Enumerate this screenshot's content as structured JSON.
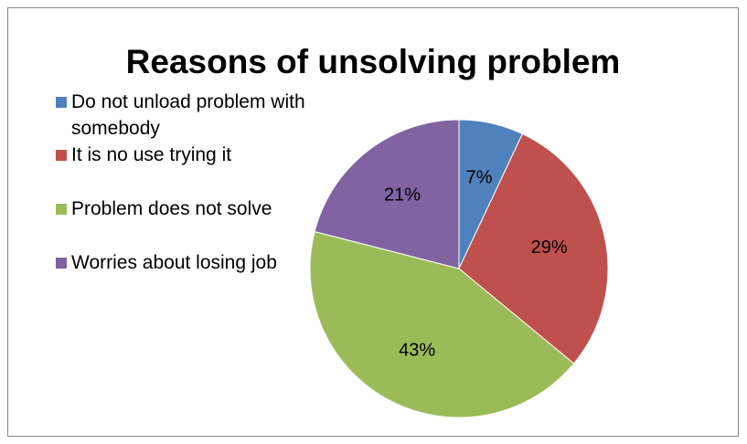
{
  "chart_data": {
    "type": "pie",
    "title": "Reasons of unsolving problem",
    "categories": [
      "Do not unload problem with somebody",
      "It is no use trying it",
      "Problem does not solve",
      "Worries about losing job"
    ],
    "values": [
      7,
      29,
      43,
      21
    ],
    "labels": [
      "7%",
      "29%",
      "43%",
      "21%"
    ],
    "colors": [
      "#4f81bd",
      "#c0504d",
      "#9bbb59",
      "#8064a2"
    ],
    "legend": "left",
    "start_angle": "12 o'clock, clockwise"
  }
}
